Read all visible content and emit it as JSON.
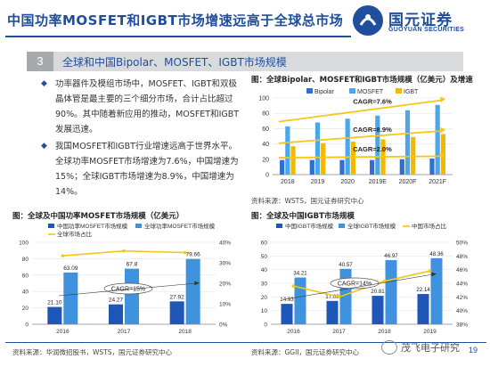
{
  "header": {
    "title": "中国功率MOSFET和IGBT市场增速远高于全球总市场",
    "logo_cn": "国元证券",
    "logo_en": "GUOYUAN SECURITIES"
  },
  "section": {
    "number": "3",
    "title": "全球和中国Bipolar、MOSFET、IGBT市场规模"
  },
  "bullets": [
    "功率器件及模组市场中，MOSFET、IGBT和双极晶体管是最主要的三个细分市场，合计占比超过90%。其中随着新应用的推动，MOSFET和IGBT发展迅速。",
    "我国MOSFET和IGBT行业增速远高于世界水平。全球功率MOSFET市场增速为7.6%，中国增速为15%；全球IGBT市场增速为8.9%，中国增速为14%。"
  ],
  "chart1": {
    "title": "图：全球Bipolar、MOSFET和IGBT市场规模（亿美元）及增速",
    "source": "资料来源：WSTS，国元证券研究中心",
    "legend": [
      "Bipolar",
      "MOSFET",
      "IGBT"
    ],
    "colors": {
      "Bipolar": "#2e6fd1",
      "MOSFET": "#4aa8e8",
      "IGBT": "#f5b800",
      "line": "#f5c518"
    },
    "annotations": [
      "CAGR=7.6%",
      "CAGR=8.9%",
      "CAGR=2.0%"
    ]
  },
  "chart2": {
    "title": "图：全球及中国功率MOSFET市场规模（亿美元）",
    "source": "资料来源：华润微招股书，WSTS，国元证券研究中心",
    "legend": [
      "中国功率MOSFET市场规模",
      "全球功率MOSFET市场规模",
      "全球市场占比"
    ],
    "annotation": "CAGR=15%"
  },
  "chart3": {
    "title": "图：全球及中国IGBT市场规模",
    "source": "资料来源：GGII，国元证券研究中心",
    "legend": [
      "中国IGBT市场规模",
      "全球IGBT市场规模",
      "中国市场占比"
    ],
    "annotation": "CAGR=14%"
  },
  "chart_data": [
    {
      "type": "bar",
      "title": "图：全球Bipolar、MOSFET和IGBT市场规模（亿美元）及增速",
      "categories": [
        "2018",
        "2019",
        "2020",
        "2019E",
        "2020F",
        "2021F"
      ],
      "series": [
        {
          "name": "Bipolar",
          "values": [
            19,
            19,
            19,
            19,
            20,
            21
          ]
        },
        {
          "name": "MOSFET",
          "values": [
            63,
            68,
            73,
            77,
            84,
            91
          ]
        },
        {
          "name": "IGBT",
          "values": [
            37,
            41,
            43,
            46,
            49,
            53
          ]
        }
      ],
      "yticks": [
        0,
        20,
        40,
        60,
        80,
        100
      ],
      "ylim": [
        0,
        100
      ],
      "annotations": [
        "CAGR=7.6%",
        "CAGR=8.9%",
        "CAGR=2.0%"
      ]
    },
    {
      "type": "bar",
      "title": "图：全球及中国功率MOSFET市场规模（亿美元）",
      "categories": [
        "2016",
        "2017",
        "2018"
      ],
      "series": [
        {
          "name": "中国功率MOSFET市场规模",
          "values": [
            21.1,
            24.27,
            27.92
          ]
        },
        {
          "name": "全球功率MOSFET市场规模",
          "values": [
            63.09,
            67.8,
            79.66
          ]
        },
        {
          "name": "全球市场占比",
          "values": [
            33.4,
            35.8,
            35.0
          ]
        }
      ],
      "yticks_left": [
        0,
        20,
        40,
        60,
        80,
        100
      ],
      "yticks_right": [
        "0%",
        "10%",
        "20%",
        "30%",
        "40%"
      ],
      "ylim": [
        0,
        100
      ],
      "y2lim": [
        0,
        40
      ],
      "annotations": [
        "CAGR=15%"
      ]
    },
    {
      "type": "bar",
      "title": "图：全球及中国IGBT市场规模",
      "categories": [
        "2016",
        "2017",
        "2018",
        "2019"
      ],
      "series": [
        {
          "name": "中国IGBT市场规模",
          "values": [
            14.93,
            17.06,
            20.81,
            22.14
          ]
        },
        {
          "name": "全球IGBT市场规模",
          "values": [
            34.21,
            40.57,
            46.97,
            48.36
          ]
        },
        {
          "name": "中国市场占比",
          "values": [
            43.6,
            42.0,
            44.3,
            45.8
          ]
        }
      ],
      "yticks_left": [
        0,
        10,
        20,
        30,
        40,
        50,
        60
      ],
      "yticks_right": [
        "38%",
        "40%",
        "42%",
        "44%",
        "46%",
        "48%",
        "50%"
      ],
      "ylim": [
        0,
        60
      ],
      "y2lim": [
        38,
        50
      ],
      "annotations": [
        "CAGR=14%"
      ]
    }
  ],
  "footer": {
    "page": "19",
    "watermark": "茂飞电子研究"
  }
}
